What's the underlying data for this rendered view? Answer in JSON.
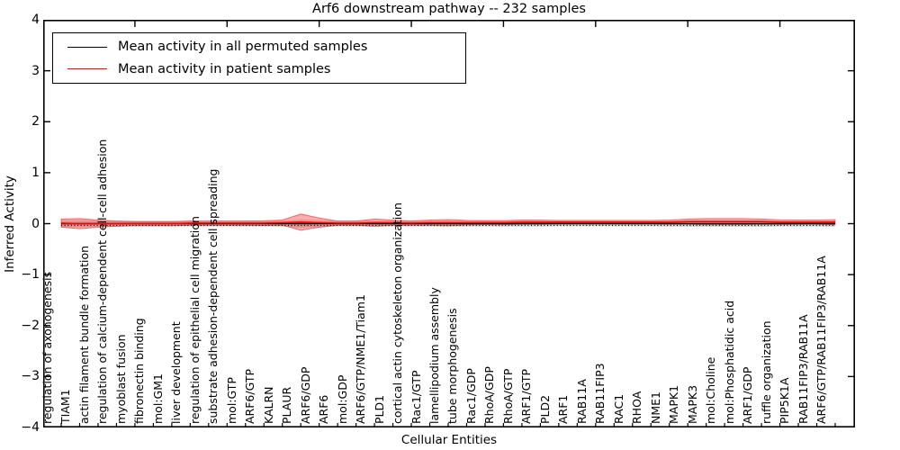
{
  "chart_data": {
    "type": "line",
    "title": "Arf6 downstream pathway -- 232 samples",
    "xlabel": "Cellular Entities",
    "ylabel": "Inferred Activity",
    "ylim": [
      -4,
      4
    ],
    "grid": false,
    "legend_position": "upper-left",
    "yticks": [
      {
        "label": "4",
        "value": 4
      },
      {
        "label": "3",
        "value": 3
      },
      {
        "label": "2",
        "value": 2
      },
      {
        "label": "1",
        "value": 1
      },
      {
        "label": "0",
        "value": 0
      },
      {
        "label": "−1",
        "value": -1
      },
      {
        "label": "−2",
        "value": -2
      },
      {
        "label": "−3",
        "value": -3
      },
      {
        "label": "−4",
        "value": -4
      }
    ],
    "categories": [
      "regulation of axonogenesis",
      "TIAM1",
      "actin filament bundle formation",
      "regulation of calcium-dependent cell-cell adhesion",
      "myoblast fusion",
      "fibronectin binding",
      "mol:GM1",
      "liver development",
      "regulation of epithelial cell migration",
      "substrate adhesion-dependent cell spreading",
      "mol:GTP",
      "ARF6/GTP",
      "KALRN",
      "PLAUR",
      "ARF6/GDP",
      "ARF6",
      "mol:GDP",
      "ARF6/GTP/NME1/Tiam1",
      "PLD1",
      "cortical actin cytoskeleton organization",
      "Rac1/GTP",
      "lamellipodium assembly",
      "tube morphogenesis",
      "Rac1/GDP",
      "RhoA/GDP",
      "RhoA/GTP",
      "ARF1/GTP",
      "PLD2",
      "ARF1",
      "RAB11A",
      "RAB11FIP3",
      "RAC1",
      "RHOA",
      "NME1",
      "MAPK1",
      "MAPK3",
      "mol:Choline",
      "mol:Phosphatidic acid",
      "ARF1/GDP",
      "ruffle organization",
      "PIP5K1A",
      "RAB11FIP3/RAB11A",
      "ARF6/GTP/RAB11FIP3/RAB11A"
    ],
    "series": [
      {
        "name": "Mean activity in all permuted samples",
        "color": "#000000",
        "values": [
          0,
          0,
          0,
          0,
          0,
          0,
          0,
          0,
          0,
          0,
          0,
          0,
          0,
          0,
          0,
          0,
          0,
          0,
          0,
          0,
          0,
          0,
          0,
          0,
          0,
          0,
          0,
          0,
          0,
          0,
          0,
          0,
          0,
          0,
          0,
          0,
          0,
          0,
          0,
          0,
          0,
          0,
          0
        ]
      },
      {
        "name": "Mean activity in patient samples",
        "color": "#ff0000",
        "values": [
          0.01,
          0.0,
          0.0,
          0.0,
          0.0,
          0.0,
          0.0,
          0.01,
          0.01,
          0.01,
          0.01,
          0.01,
          0.02,
          0.03,
          0.02,
          0.01,
          0.01,
          0.02,
          0.02,
          0.01,
          0.02,
          0.02,
          0.02,
          0.02,
          0.02,
          0.03,
          0.03,
          0.03,
          0.03,
          0.03,
          0.03,
          0.03,
          0.03,
          0.03,
          0.04,
          0.04,
          0.04,
          0.04,
          0.04,
          0.03,
          0.03,
          0.03,
          0.03
        ]
      }
    ],
    "bands": [
      {
        "name": "permuted-sample-spread",
        "fill": "rgba(120,120,120,0.32)",
        "center": "zero",
        "halfwidths": [
          0.07,
          0.07,
          0.06,
          0.06,
          0.055,
          0.055,
          0.055,
          0.055,
          0.055,
          0.055,
          0.055,
          0.055,
          0.06,
          0.08,
          0.07,
          0.055,
          0.055,
          0.06,
          0.055,
          0.055,
          0.055,
          0.06,
          0.055,
          0.055,
          0.055,
          0.055,
          0.055,
          0.05,
          0.05,
          0.05,
          0.05,
          0.05,
          0.05,
          0.055,
          0.06,
          0.06,
          0.06,
          0.06,
          0.06,
          0.055,
          0.055,
          0.055,
          0.06
        ]
      },
      {
        "name": "patient-sample-spread",
        "fill": "rgba(255,40,40,0.38)",
        "stroke": "rgba(215,30,30,0.55)",
        "center": "patient-mean",
        "halfwidths": [
          0.08,
          0.1,
          0.07,
          0.05,
          0.04,
          0.04,
          0.04,
          0.04,
          0.04,
          0.04,
          0.04,
          0.045,
          0.05,
          0.16,
          0.09,
          0.04,
          0.04,
          0.07,
          0.05,
          0.04,
          0.05,
          0.06,
          0.045,
          0.04,
          0.04,
          0.04,
          0.04,
          0.035,
          0.035,
          0.035,
          0.035,
          0.035,
          0.035,
          0.04,
          0.05,
          0.06,
          0.06,
          0.06,
          0.05,
          0.045,
          0.04,
          0.04,
          0.05
        ]
      }
    ]
  }
}
